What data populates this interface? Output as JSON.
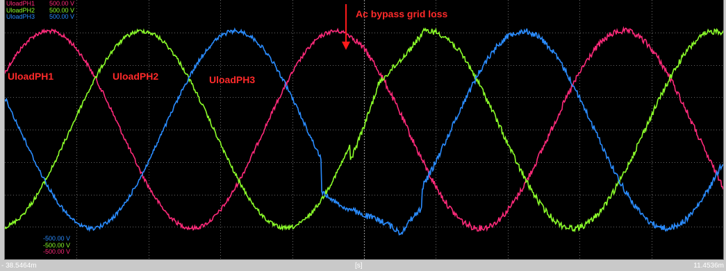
{
  "colors": {
    "ph1": "#ff2a7a",
    "ph2": "#8cff2a",
    "ph3": "#2a8cff",
    "annotation": "#ff1a1a",
    "grid": "#8a8a8a",
    "background": "#000000"
  },
  "legend_top": [
    {
      "name": "UloadPH1",
      "value": "500.00 V",
      "color_key": "ph1"
    },
    {
      "name": "UloadPH2",
      "value": "500.00 V",
      "color_key": "ph2"
    },
    {
      "name": "UloadPH3",
      "value": "500.00 V",
      "color_key": "ph3"
    }
  ],
  "legend_bottom": [
    {
      "value": "-500.00 V",
      "color_key": "ph3"
    },
    {
      "value": "-500.00 V",
      "color_key": "ph2"
    },
    {
      "value": "-500.00 V",
      "color_key": "ph1"
    }
  ],
  "labels": {
    "ph1": "UloadPH1",
    "ph2": "UloadPH2",
    "ph3": "UloadPH3",
    "event": "Ac bypass grid loss"
  },
  "x_axis": {
    "min_label": "- 38.5464m",
    "unit_label": "[s]",
    "max_label": "11.4536m"
  },
  "chart_data": {
    "type": "line",
    "x_unit": "ms",
    "y_unit": "V",
    "xlim": [
      -38.5464,
      11.4536
    ],
    "ylim": [
      -500,
      500
    ],
    "grid": true,
    "amplitude_before_event": 380,
    "amplitude_after_event": 380,
    "event_x_ms": -14.5,
    "series": [
      {
        "name": "UloadPH1",
        "period_ms": 20.0,
        "peak_x_ms": -35.5,
        "color_key": "ph1"
      },
      {
        "name": "UloadPH2",
        "period_ms": 20.0,
        "peak_x_ms": -29.0,
        "color_key": "ph2"
      },
      {
        "name": "UloadPH3",
        "period_ms": 20.0,
        "peak_x_ms": -22.5,
        "color_key": "ph3"
      }
    ],
    "disturbance_samples": {
      "UloadPH2": [
        [
          -14.5,
          -120
        ],
        [
          -13.5,
          20
        ],
        [
          -12.5,
          180
        ],
        [
          -11.5,
          240
        ],
        [
          -10.5,
          300
        ],
        [
          -9.5,
          370
        ]
      ],
      "UloadPH3": [
        [
          -16.5,
          -240
        ],
        [
          -15.0,
          -300
        ],
        [
          -13.5,
          -330
        ],
        [
          -12.0,
          -360
        ],
        [
          -11.0,
          -400
        ],
        [
          -10.5,
          -360
        ],
        [
          -9.5,
          -300
        ]
      ]
    }
  }
}
